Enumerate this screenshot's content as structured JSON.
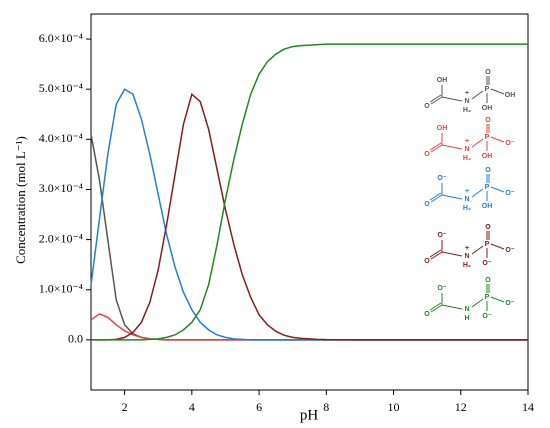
{
  "chart_data": {
    "type": "line",
    "xlabel": "pH",
    "ylabel": "Concentration (mol L⁻¹)",
    "x": [
      1,
      1.25,
      1.5,
      1.75,
      2,
      2.25,
      2.5,
      2.75,
      3,
      3.25,
      3.5,
      3.75,
      4,
      4.25,
      4.5,
      4.75,
      5,
      5.25,
      5.5,
      5.75,
      6,
      6.25,
      6.5,
      6.75,
      7,
      7.25,
      7.5,
      7.75,
      8,
      9,
      10,
      11,
      12,
      13,
      14
    ],
    "series": [
      {
        "color": "#555555",
        "values": [
          0.00041,
          0.00032,
          0.0002,
          8e-05,
          3e-05,
          1.2e-05,
          5e-06,
          2e-06,
          1e-06,
          0,
          0,
          0,
          0,
          0,
          0,
          0,
          0,
          0,
          0,
          0,
          0,
          0,
          0,
          0,
          0,
          0,
          0,
          0,
          0,
          0,
          0,
          0,
          0,
          0,
          0
        ]
      },
      {
        "color": "#e8413c",
        "values": [
          4e-05,
          5.2e-05,
          4.5e-05,
          3e-05,
          1.8e-05,
          1e-05,
          5e-06,
          2e-06,
          1e-06,
          0,
          0,
          0,
          0,
          0,
          0,
          0,
          0,
          0,
          0,
          0,
          0,
          0,
          0,
          0,
          0,
          0,
          0,
          0,
          0,
          0,
          0,
          0,
          0,
          0,
          0
        ]
      },
      {
        "color": "#1f7fd9",
        "values": [
          0.00011,
          0.00024,
          0.00037,
          0.00047,
          0.0005,
          0.00049,
          0.00044,
          0.00037,
          0.00029,
          0.00021,
          0.000145,
          9.5e-05,
          6e-05,
          3.5e-05,
          2e-05,
          1e-05,
          5e-06,
          2e-06,
          1e-06,
          0,
          0,
          0,
          0,
          0,
          0,
          0,
          0,
          0,
          0,
          0,
          0,
          0,
          0,
          0,
          0
        ]
      },
      {
        "color": "#8b1a1a",
        "values": [
          0,
          0,
          0,
          1e-06,
          5e-06,
          1.5e-05,
          3.5e-05,
          7.5e-05,
          0.00014,
          0.00023,
          0.00033,
          0.00043,
          0.00049,
          0.000475,
          0.00042,
          0.00034,
          0.00026,
          0.00019,
          0.00013,
          8.5e-05,
          5e-05,
          3e-05,
          1.7e-05,
          9e-06,
          5e-06,
          3e-06,
          2e-06,
          1e-06,
          5e-07,
          0,
          0,
          0,
          0,
          0,
          0
        ]
      },
      {
        "color": "#1e8a1e",
        "values": [
          0,
          0,
          0,
          0,
          0,
          0,
          0,
          1e-06,
          2e-06,
          5e-06,
          1e-05,
          2e-05,
          3.5e-05,
          6e-05,
          0.00011,
          0.00019,
          0.00028,
          0.00036,
          0.00043,
          0.00049,
          0.00053,
          0.000555,
          0.00057,
          0.00058,
          0.000585,
          0.000587,
          0.000588,
          0.000589,
          0.00059,
          0.00059,
          0.00059,
          0.00059,
          0.00059,
          0.00059,
          0.00059
        ]
      }
    ],
    "xlim": [
      1,
      14
    ],
    "xticks": [
      2,
      4,
      6,
      8,
      10,
      12,
      14
    ],
    "ylim": [
      -0.0001,
      0.00065
    ],
    "yticks": [
      {
        "value": 0,
        "label": "0.0"
      },
      {
        "value": 0.0001,
        "label": "1.0×10⁻⁴"
      },
      {
        "value": 0.0002,
        "label": "2.0×10⁻⁴"
      },
      {
        "value": 0.0003,
        "label": "3.0×10⁻⁴"
      },
      {
        "value": 0.0004,
        "label": "4.0×10⁻⁴"
      },
      {
        "value": 0.0005,
        "label": "5.0×10⁻⁴"
      },
      {
        "value": 0.0006,
        "label": "6.0×10⁻⁴"
      }
    ],
    "structures": [
      {
        "top": "OH",
        "carbonyl": "O",
        "n": "N",
        "charge": "+",
        "nh": "H₂",
        "p": "P",
        "po": "O",
        "right": "OH",
        "bottom": "OH"
      },
      {
        "top": "OH",
        "carbonyl": "O",
        "n": "N",
        "charge": "+",
        "nh": "H₂",
        "p": "P",
        "po": "O",
        "right": "O⁻",
        "bottom": "OH"
      },
      {
        "top": "O⁻",
        "carbonyl": "O",
        "n": "N",
        "charge": "+",
        "nh": "H₂",
        "p": "P",
        "po": "O",
        "right": "O⁻",
        "bottom": "OH"
      },
      {
        "top": "O⁻",
        "carbonyl": "O",
        "n": "N",
        "charge": "+",
        "nh": "H₂",
        "p": "P",
        "po": "O",
        "right": "O⁻",
        "bottom": "O⁻"
      },
      {
        "top": "O⁻",
        "carbonyl": "O",
        "n": "N",
        "nh": "H",
        "p": "P",
        "po": "O",
        "right": "O⁻",
        "bottom": "O⁻"
      }
    ]
  }
}
